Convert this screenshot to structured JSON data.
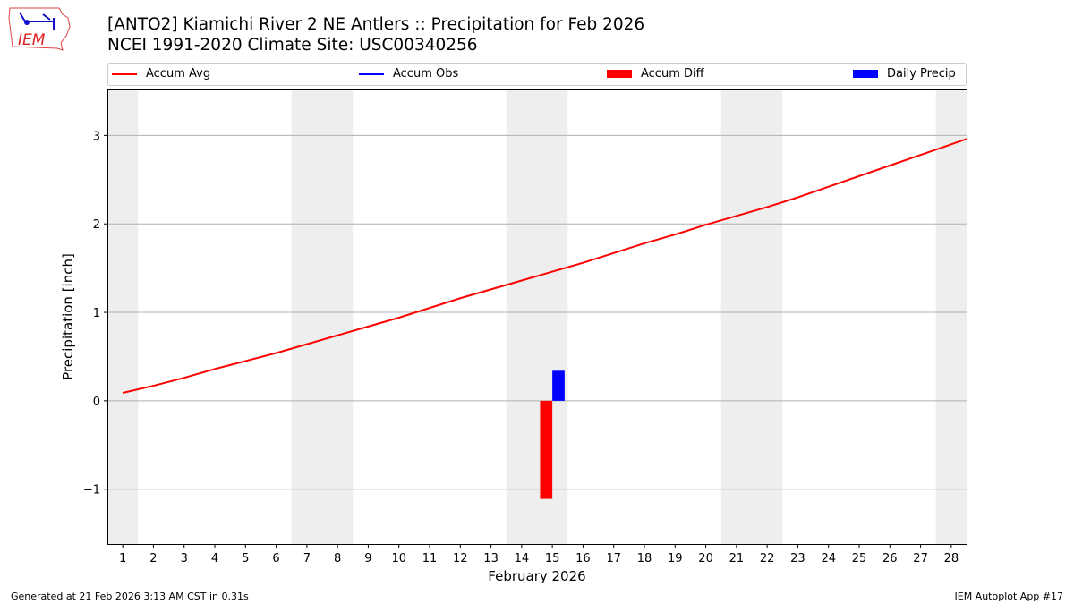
{
  "header": {
    "title_line1": "[ANTO2] Kiamichi River 2 NE Antlers :: Precipitation for Feb 2026",
    "title_line2": "NCEI 1991-2020 Climate Site: USC00340256",
    "logo_text": "IEM"
  },
  "footer": {
    "generated": "Generated at 21 Feb 2026 3:13 AM CST in 0.31s",
    "app": "IEM Autoplot App #17"
  },
  "chart_data": {
    "type": "line",
    "xlabel": "February 2026",
    "ylabel": "Precipitation [inch]",
    "xlim": [
      0.5,
      28.5
    ],
    "ylim": [
      -1.62,
      3.52
    ],
    "yticks": [
      -1,
      0,
      1,
      2,
      3
    ],
    "ytick_labels": [
      "−1",
      "0",
      "1",
      "2",
      "3"
    ],
    "x": [
      1,
      2,
      3,
      4,
      5,
      6,
      7,
      8,
      9,
      10,
      11,
      12,
      13,
      14,
      15,
      16,
      17,
      18,
      19,
      20,
      21,
      22,
      23,
      24,
      25,
      26,
      27,
      28
    ],
    "grid": "y",
    "legend_placement": "top",
    "weekend_shading": [
      [
        0.5,
        1.5
      ],
      [
        6.5,
        8.5
      ],
      [
        13.5,
        15.5
      ],
      [
        20.5,
        22.5
      ],
      [
        27.5,
        28.5
      ]
    ],
    "series": [
      {
        "name": "Accum Avg",
        "kind": "line",
        "color": "#ff0000",
        "x": [
          1,
          2,
          3,
          4,
          5,
          6,
          7,
          8,
          9,
          10,
          11,
          12,
          13,
          14,
          15,
          16,
          17,
          18,
          19,
          20,
          21,
          22,
          23,
          24,
          25,
          26,
          27,
          28,
          28.5
        ],
        "values": [
          0.09,
          0.17,
          0.26,
          0.36,
          0.45,
          0.54,
          0.64,
          0.74,
          0.84,
          0.94,
          1.05,
          1.16,
          1.26,
          1.36,
          1.46,
          1.56,
          1.67,
          1.78,
          1.88,
          1.99,
          2.09,
          2.19,
          2.3,
          2.42,
          2.54,
          2.66,
          2.78,
          2.9,
          2.96
        ]
      },
      {
        "name": "Accum Obs",
        "kind": "line",
        "color": "#0000ff",
        "x": [
          15
        ],
        "values": [
          0.34
        ]
      },
      {
        "name": "Accum Diff",
        "kind": "bar",
        "color": "#ff0000",
        "x": [
          15
        ],
        "values": [
          -1.11
        ]
      },
      {
        "name": "Daily Precip",
        "kind": "bar",
        "color": "#0000ff",
        "x": [
          15
        ],
        "values": [
          0.34
        ]
      }
    ]
  }
}
